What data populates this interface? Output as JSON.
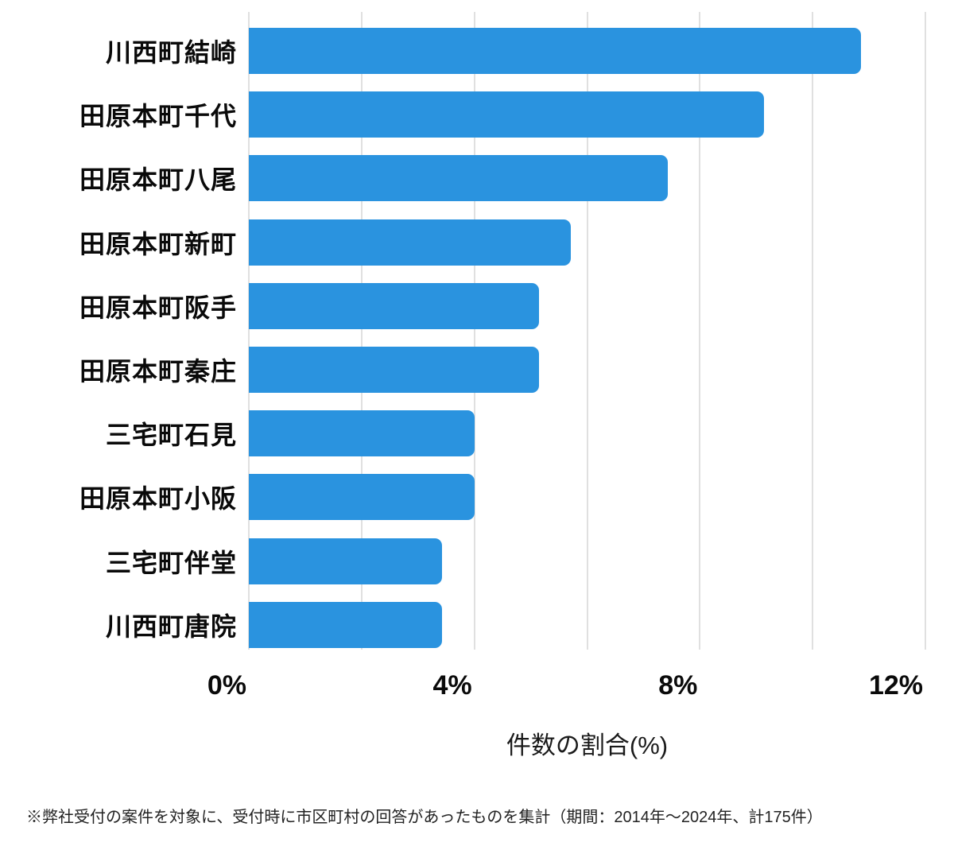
{
  "chart_data": {
    "type": "bar",
    "orientation": "horizontal",
    "categories": [
      "川西町結崎",
      "田原本町千代",
      "田原本町八尾",
      "田原本町新町",
      "田原本町阪手",
      "田原本町秦庄",
      "三宅町石見",
      "田原本町小阪",
      "三宅町伴堂",
      "川西町唐院"
    ],
    "values": [
      10.86,
      9.14,
      7.43,
      5.71,
      5.14,
      5.14,
      4.0,
      4.0,
      3.43,
      3.43
    ],
    "title": "",
    "xlabel": "件数の割合(%)",
    "ylabel": "",
    "xlim": [
      0,
      12
    ],
    "gridline_step": 2,
    "grid": "vertical",
    "x_ticks": [
      "0%",
      "4%",
      "8%",
      "12%"
    ],
    "x_tick_values": [
      0,
      4,
      8,
      12
    ],
    "legend": "none",
    "bar_color": "#2A93DF",
    "grid_color": "#E0E0E0"
  },
  "footnote": "※弊社受付の案件を対象に、受付時に市区町村の回答があったものを集計（期間：2014年～2024年、計175件）"
}
